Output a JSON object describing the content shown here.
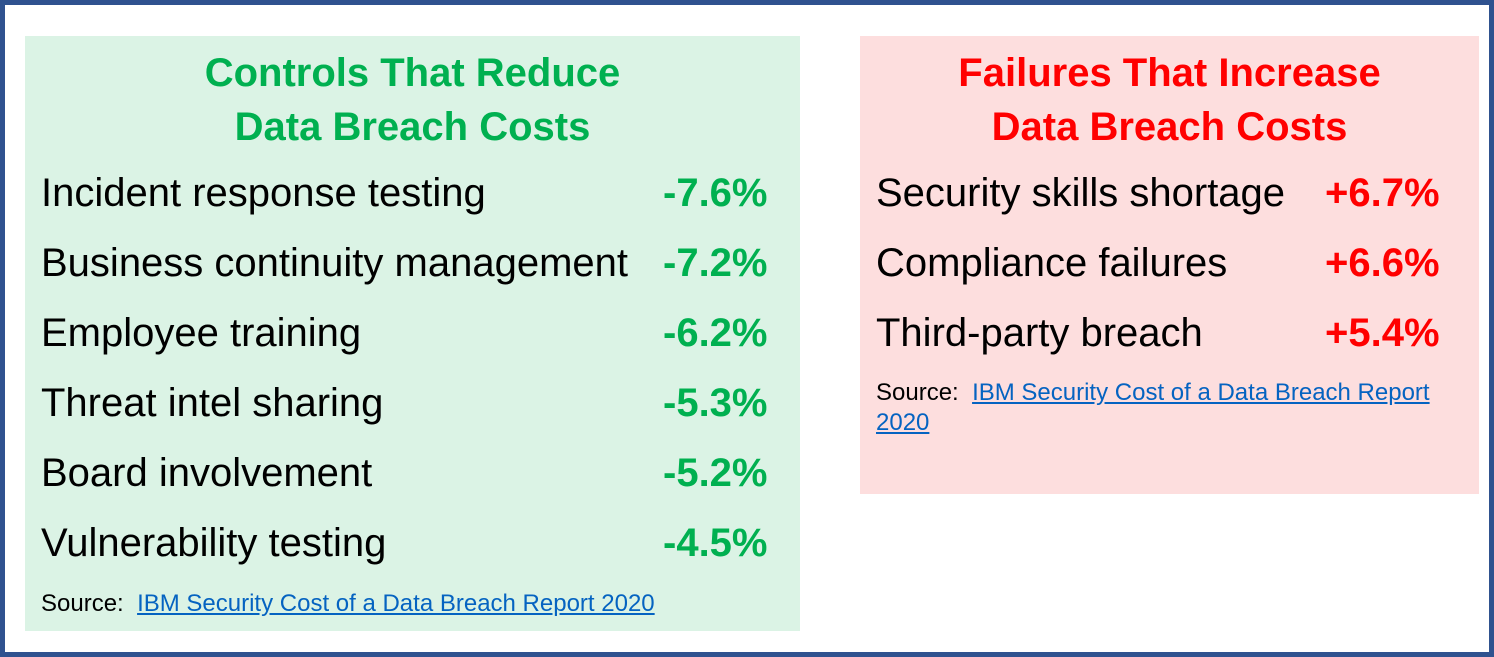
{
  "left_panel": {
    "title_line1": "Controls That Reduce",
    "title_line2": "Data Breach Costs",
    "items": [
      {
        "label": "Incident response testing",
        "value": "-7.6%"
      },
      {
        "label": "Business continuity management",
        "value": "-7.2%"
      },
      {
        "label": "Employee training",
        "value": "-6.2%"
      },
      {
        "label": "Threat intel sharing",
        "value": "-5.3%"
      },
      {
        "label": "Board involvement",
        "value": "-5.2%"
      },
      {
        "label": "Vulnerability testing",
        "value": "-4.5%"
      }
    ],
    "source_label": "Source:",
    "source_link": "IBM Security Cost of a Data Breach Report 2020"
  },
  "right_panel": {
    "title_line1": "Failures That Increase",
    "title_line2": "Data Breach Costs",
    "items": [
      {
        "label": "Security skills shortage",
        "value": "+6.7%"
      },
      {
        "label": "Compliance failures",
        "value": "+6.6%"
      },
      {
        "label": "Third-party breach",
        "value": "+5.4%"
      }
    ],
    "source_label": "Source:",
    "source_link": "IBM Security Cost of a Data Breach Report 2020"
  },
  "colors": {
    "green_text": "#00b050",
    "red_text": "#ff0000",
    "green_panel": "#dbf3e5",
    "red_panel": "#fddede",
    "frame_border": "#2f528f",
    "link": "#0563c1"
  }
}
